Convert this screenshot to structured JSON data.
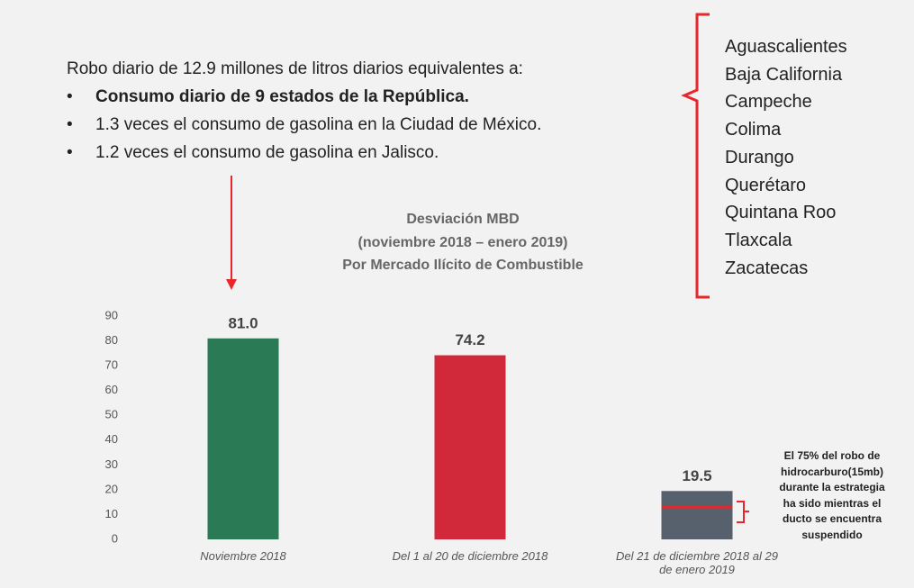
{
  "header": {
    "intro": "Robo diario de 12.9 millones de litros diarios equivalentes a:",
    "bullets": [
      "Consumo diario de 9 estados de la República.",
      "1.3 veces el consumo de gasolina en la Ciudad de México.",
      "1.2 veces el consumo de gasolina en Jalisco."
    ]
  },
  "states": [
    "Aguascalientes",
    "Baja California",
    "Campeche",
    "Colima",
    "Durango",
    "Querétaro",
    "Quintana Roo",
    "Tlaxcala",
    "Zacatecas"
  ],
  "chart_data": {
    "type": "bar",
    "title": "Desviación MBD",
    "subtitle": [
      "(noviembre 2018 – enero 2019)",
      "Por Mercado Ilícito de Combustible"
    ],
    "categories": [
      "Noviembre 2018",
      "Del 1 al 20 de diciembre 2018",
      "Del 21 de diciembre 2018 al 29 de enero 2019"
    ],
    "values": [
      81.0,
      74.2,
      19.5
    ],
    "value_labels": [
      "81.0",
      "74.2",
      "19.5"
    ],
    "colors": [
      "#2a7a55",
      "#d1293a",
      "#56616d"
    ],
    "ylim": [
      0,
      90
    ],
    "yticks": [
      0,
      10,
      20,
      30,
      40,
      50,
      60,
      70,
      80,
      90
    ],
    "grid": false,
    "reference_line": 13,
    "annotation": [
      "El 75% del robo de",
      "hidrocarburo(15mb)",
      "durante la estrategia",
      "ha sido mientras el",
      "ducto se encuentra",
      "suspendido"
    ]
  }
}
